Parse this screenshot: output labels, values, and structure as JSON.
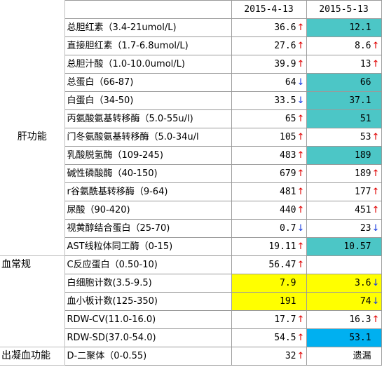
{
  "header": {
    "dates": [
      "2015-4-13",
      "2015-5-13"
    ]
  },
  "colors": {
    "teal_highlight": "#4cc6c6",
    "yellow_highlight": "#ffff00",
    "blue_highlight": "#00b0f0",
    "up_arrow": "#e00000",
    "down_arrow": "#1a3de0"
  },
  "categories": {
    "liver": "肝功能",
    "blood_routine": "血常规",
    "coagulation": "出凝血功能"
  },
  "rows": [
    {
      "name": "总胆红素（3.4-21umol/L)",
      "v1": "36.6",
      "a1": "↑",
      "v2": "12.1",
      "a2": "",
      "hl2": "teal"
    },
    {
      "name": "直接胆红素（1.7-6.8umol/L)",
      "v1": "27.6",
      "a1": "↑",
      "v2": "8.6",
      "a2": "↑"
    },
    {
      "name": "总胆汁酸（1.0-10.0umol/L)",
      "v1": "39.9",
      "a1": "↑",
      "v2": "13",
      "a2": "↑"
    },
    {
      "name": "总蛋白（66-87)",
      "v1": "64",
      "a1": "↓",
      "v2": "66",
      "a2": "",
      "hl2": "teal"
    },
    {
      "name": "白蛋白（34-50)",
      "v1": "33.5",
      "a1": "↓",
      "v2": "37.1",
      "a2": "",
      "hl2": "teal"
    },
    {
      "name": "丙氨酸氨基转移酶（5.0-55u/l)",
      "v1": "65",
      "a1": "↑",
      "v2": "51",
      "a2": "",
      "hl2": "teal"
    },
    {
      "name": "门冬氨酸氨基转移酶（5.0-34u/l",
      "v1": "105",
      "a1": "↑",
      "v2": "53",
      "a2": "↑"
    },
    {
      "name": "乳酸脱氢酶（109-245)",
      "v1": "483",
      "a1": "↑",
      "v2": "189",
      "a2": "",
      "hl2": "teal"
    },
    {
      "name": "碱性磷酸酶（40-150)",
      "v1": "679",
      "a1": "↑",
      "v2": "189",
      "a2": "↑"
    },
    {
      "name": "r谷氨酰基转移酶（9-64)",
      "v1": "481",
      "a1": "↑",
      "v2": "177",
      "a2": "↑"
    },
    {
      "name": "尿酸（90-420)",
      "v1": "440",
      "a1": "↑",
      "v2": "451",
      "a2": "↑"
    },
    {
      "name": "视黄醇结合蛋白（25-70)",
      "v1": "0.7",
      "a1": "↓",
      "v2": "23",
      "a2": "↓"
    },
    {
      "name": "AST线粒体同工酶（0-15)",
      "v1": "19.11",
      "a1": "↑",
      "v2": "10.57",
      "a2": "",
      "hl2": "teal"
    },
    {
      "name": "C反应蛋白（0.50-10)",
      "v1": "56.47",
      "a1": "↑",
      "v2": "",
      "a2": ""
    },
    {
      "name": "白细胞计数(3.5-9.5)",
      "v1": "7.9",
      "a1": "",
      "hl1": "yellow",
      "v2": "3.6",
      "a2": "↓",
      "hl2": "yellow"
    },
    {
      "name": "血小板计数(125-350)",
      "v1": "191",
      "a1": "",
      "hl1": "yellow",
      "v2": "74",
      "a2": "↓",
      "hl2": "yellow"
    },
    {
      "name": "RDW-CV(11.0-16.0)",
      "v1": "17.7",
      "a1": "↑",
      "v2": "16.3",
      "a2": "↑"
    },
    {
      "name": "RDW-SD(37.0-54.0)",
      "v1": "54.5",
      "a1": "↑",
      "v2": "53.1",
      "a2": "",
      "hl2": "blue"
    },
    {
      "name": "D-二聚体（0-0.55)",
      "v1": "32",
      "a1": "↑",
      "v2": "遗漏",
      "a2": ""
    }
  ]
}
